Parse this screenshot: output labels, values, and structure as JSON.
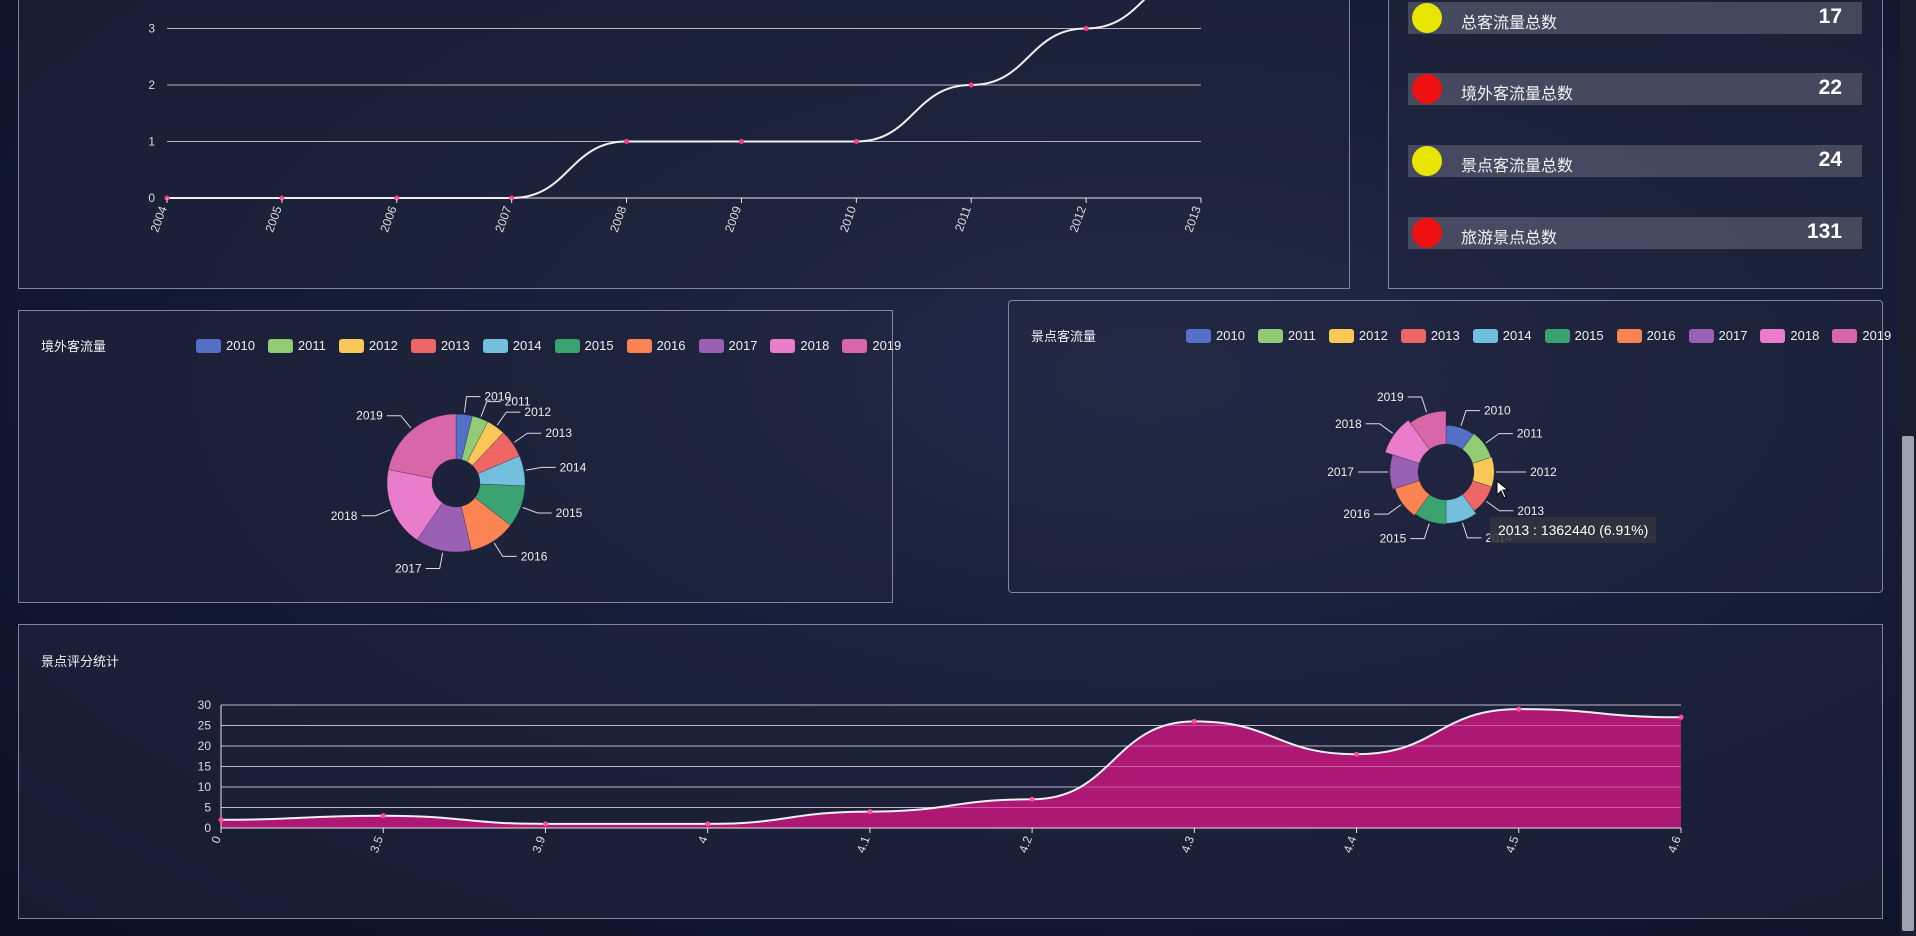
{
  "top_line": {
    "chart_data": {
      "type": "line",
      "x": [
        "2004",
        "2005",
        "2006",
        "2007",
        "2008",
        "2009",
        "2010",
        "2011",
        "2012",
        "2013"
      ],
      "values": [
        0,
        0,
        0,
        0,
        1,
        1,
        1,
        2,
        3,
        4
      ],
      "y_ticks": [
        "0",
        "1",
        "2",
        "3"
      ],
      "ylim": [
        0,
        3
      ],
      "smooth": true,
      "grid": true
    },
    "line_color": "#f0f0f0",
    "point_color": "#ff3c8c"
  },
  "stats": [
    {
      "label": "总客流量总数",
      "value": "17",
      "dot_color": "#e8e600"
    },
    {
      "label": "境外客流量总数",
      "value": "22",
      "dot_color": "#ee1111"
    },
    {
      "label": "景点客流量总数",
      "value": "24",
      "dot_color": "#e8e600"
    },
    {
      "label": "旅游景点总数",
      "value": "131",
      "dot_color": "#ee1111"
    }
  ],
  "foreign_pie": {
    "title": "境外客流量",
    "chart_data": {
      "type": "pie",
      "variant": "donut",
      "categories": [
        "2010",
        "2011",
        "2012",
        "2013",
        "2014",
        "2015",
        "2016",
        "2017",
        "2018",
        "2019"
      ],
      "values": [
        3.5,
        3.5,
        4,
        6,
        6.5,
        9,
        10,
        12,
        17,
        20
      ]
    }
  },
  "scenic_pie": {
    "title": "景点客流量",
    "chart_data": {
      "type": "pie",
      "variant": "rose",
      "categories": [
        "2010",
        "2011",
        "2012",
        "2013",
        "2014",
        "2015",
        "2016",
        "2017",
        "2018",
        "2019"
      ],
      "values": [
        6,
        6.5,
        7,
        6.91,
        9,
        9.5,
        10.5,
        12,
        17,
        15
      ]
    },
    "tooltip": "2013 : 1362440 (6.91%)"
  },
  "legend_colors": [
    "#5470c6",
    "#91cc75",
    "#fac858",
    "#ee6666",
    "#73c0de",
    "#3ba272",
    "#fc8452",
    "#9a60b4",
    "#ea7ccc",
    "#d867a8"
  ],
  "rating_area": {
    "title": "景点评分统计",
    "chart_data": {
      "type": "area",
      "x": [
        "0",
        "3.5",
        "3.9",
        "4",
        "4.1",
        "4.2",
        "4.3",
        "4.4",
        "4.5",
        "4.6"
      ],
      "values": [
        2,
        3,
        1,
        1,
        4,
        7,
        26,
        18,
        29,
        27
      ],
      "y_ticks": [
        "0",
        "5",
        "10",
        "15",
        "20",
        "25",
        "30"
      ],
      "ylim": [
        0,
        30
      ],
      "smooth": true,
      "grid": true
    },
    "fill_color": "#b8187a",
    "line_color": "#f0f0f0"
  }
}
